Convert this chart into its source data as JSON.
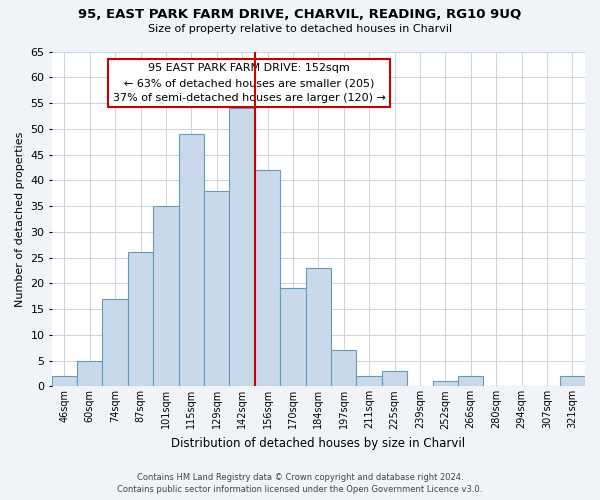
{
  "title": "95, EAST PARK FARM DRIVE, CHARVIL, READING, RG10 9UQ",
  "subtitle": "Size of property relative to detached houses in Charvil",
  "xlabel": "Distribution of detached houses by size in Charvil",
  "ylabel": "Number of detached properties",
  "bar_labels": [
    "46sqm",
    "60sqm",
    "74sqm",
    "87sqm",
    "101sqm",
    "115sqm",
    "129sqm",
    "142sqm",
    "156sqm",
    "170sqm",
    "184sqm",
    "197sqm",
    "211sqm",
    "225sqm",
    "239sqm",
    "252sqm",
    "266sqm",
    "280sqm",
    "294sqm",
    "307sqm",
    "321sqm"
  ],
  "bar_values": [
    2,
    5,
    17,
    26,
    35,
    49,
    38,
    54,
    42,
    19,
    23,
    7,
    2,
    3,
    0,
    1,
    2,
    0,
    0,
    0,
    2
  ],
  "bar_color": "#c8daea",
  "bar_edge_color": "#6699bb",
  "vline_x": 7.5,
  "vline_color": "#cc0000",
  "annotation_line1": "95 EAST PARK FARM DRIVE: 152sqm",
  "annotation_line2": "← 63% of detached houses are smaller (205)",
  "annotation_line3": "37% of semi-detached houses are larger (120) →",
  "annotation_box_edge_color": "#cc0000",
  "ylim": [
    0,
    65
  ],
  "yticks": [
    0,
    5,
    10,
    15,
    20,
    25,
    30,
    35,
    40,
    45,
    50,
    55,
    60,
    65
  ],
  "footer_line1": "Contains HM Land Registry data © Crown copyright and database right 2024.",
  "footer_line2": "Contains public sector information licensed under the Open Government Licence v3.0.",
  "bg_color": "#f0f4f8",
  "plot_bg_color": "#ffffff",
  "grid_color": "#c8d4e0"
}
